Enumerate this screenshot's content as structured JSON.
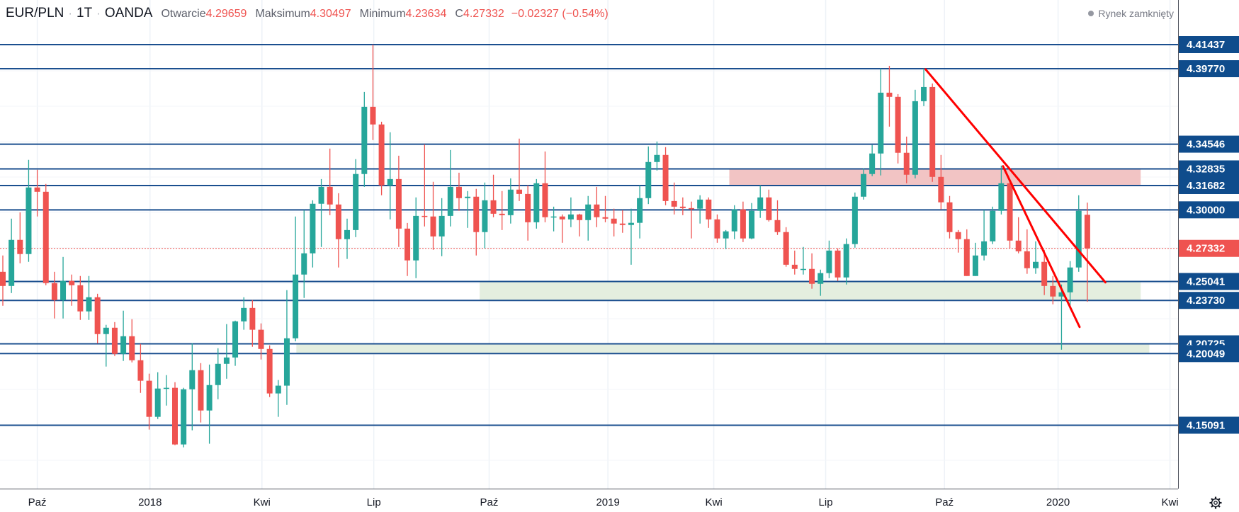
{
  "header": {
    "symbol": "EUR/PLN",
    "interval": "1T",
    "exchange": "OANDA",
    "open_label": "Otwarcie",
    "open_value": "4.29659",
    "high_label": "Maksimum",
    "high_value": "4.30497",
    "low_label": "Minimum",
    "low_value": "4.23634",
    "close_label": "C",
    "close_value": "4.27332",
    "change": "−0.02327 (−0.54%)",
    "market_status": "Rynek zamknięty"
  },
  "colors": {
    "up": "#26a69a",
    "down": "#ef5350",
    "level": "#1b4f8f",
    "label_bg": "#0f4c8c",
    "resistance_zone": "#f2c4c4",
    "support_zone": "#e4eedf",
    "trendline": "#ff0000"
  },
  "chart_data": {
    "type": "candlestick",
    "title": "EUR/PLN · 1T · OANDA",
    "y_range": [
      4.1215,
      4.4453
    ],
    "x_ticks": [
      {
        "label": "Paź",
        "index": 4.0
      },
      {
        "label": "2018",
        "index": 17.1
      },
      {
        "label": "Kwi",
        "index": 30.1
      },
      {
        "label": "Lip",
        "index": 43.1
      },
      {
        "label": "Paź",
        "index": 56.5
      },
      {
        "label": "2019",
        "index": 70.3
      },
      {
        "label": "Kwi",
        "index": 82.6
      },
      {
        "label": "Lip",
        "index": 95.6
      },
      {
        "label": "Paź",
        "index": 109.4
      },
      {
        "label": "2020",
        "index": 122.6
      },
      {
        "label": "Kwi",
        "index": 135.6
      }
    ],
    "levels": [
      "4.41437",
      "4.39770",
      "4.34546",
      "4.32835",
      "4.31682",
      "4.30000",
      "4.25041",
      "4.23730",
      "4.20725",
      "4.20049",
      "4.15091"
    ],
    "last_price": "4.27332",
    "zones": [
      {
        "type": "resistance",
        "from_index": 84.4,
        "to_index": 132.2,
        "top": 4.32835,
        "bottom": 4.31682
      },
      {
        "type": "support",
        "from_index": 55.4,
        "to_index": 132.2,
        "top": 4.25041,
        "bottom": 4.2373
      },
      {
        "type": "support",
        "from_index": 34.1,
        "to_index": 133.2,
        "top": 4.20725,
        "bottom": 4.20049
      }
    ],
    "trendlines": [
      {
        "from": [
          107.2,
          4.3973
        ],
        "to": [
          128.1,
          4.2498
        ]
      },
      {
        "from": [
          116.2,
          4.3302
        ],
        "to": [
          125.1,
          4.2189
        ]
      }
    ],
    "ohlc": [
      [
        4.2571,
        4.2684,
        4.2336,
        4.2473
      ],
      [
        4.2473,
        4.2939,
        4.2424,
        4.2792
      ],
      [
        4.2792,
        4.2983,
        4.263,
        4.2694
      ],
      [
        4.2694,
        4.3346,
        4.264,
        4.3155
      ],
      [
        4.3155,
        4.3277,
        4.2954,
        4.3125
      ],
      [
        4.3125,
        4.3179,
        4.2478,
        4.2493
      ],
      [
        4.2493,
        4.2571,
        4.2248,
        4.2375
      ],
      [
        4.2375,
        4.2674,
        4.2248,
        4.2508
      ],
      [
        4.2508,
        4.2552,
        4.2336,
        4.2478
      ],
      [
        4.2478,
        4.2542,
        4.2238,
        4.2297
      ],
      [
        4.2297,
        4.2542,
        4.2238,
        4.2395
      ],
      [
        4.2395,
        4.2419,
        4.2076,
        4.214
      ],
      [
        4.214,
        4.2204,
        4.1915,
        4.2184
      ],
      [
        4.2184,
        4.2223,
        4.1988,
        4.2003
      ],
      [
        4.2003,
        4.2302,
        4.1954,
        4.2125
      ],
      [
        4.2125,
        4.2243,
        4.1944,
        4.1959
      ],
      [
        4.1959,
        4.2072,
        4.1733,
        4.1817
      ],
      [
        4.1817,
        4.1866,
        4.1479,
        4.1567
      ],
      [
        4.1567,
        4.1876,
        4.1552,
        4.1763
      ],
      [
        4.1763,
        4.1856,
        4.1645,
        4.1768
      ],
      [
        4.1768,
        4.1807,
        4.1371,
        4.1376
      ],
      [
        4.1376,
        4.1768,
        4.1356,
        4.1758
      ],
      [
        4.1758,
        4.2076,
        4.1474,
        4.189
      ],
      [
        4.189,
        4.1939,
        4.1528,
        4.1611
      ],
      [
        4.1611,
        4.1929,
        4.1381,
        4.1787
      ],
      [
        4.1787,
        4.2042,
        4.1689,
        4.1934
      ],
      [
        4.1934,
        4.2209,
        4.1831,
        4.1978
      ],
      [
        4.1978,
        4.2233,
        4.192,
        4.2228
      ],
      [
        4.2228,
        4.2395,
        4.217,
        4.2321
      ],
      [
        4.2321,
        4.2375,
        4.2052,
        4.217
      ],
      [
        4.217,
        4.2214,
        4.1964,
        4.2037
      ],
      [
        4.2037,
        4.2062,
        4.1704,
        4.1729
      ],
      [
        4.1729,
        4.1822,
        4.1567,
        4.1783
      ],
      [
        4.1783,
        4.2444,
        4.165,
        4.2111
      ],
      [
        4.2111,
        4.2954,
        4.209,
        4.2552
      ],
      [
        4.2552,
        4.2998,
        4.239,
        4.2699
      ],
      [
        4.2699,
        4.3066,
        4.2601,
        4.3042
      ],
      [
        4.3042,
        4.3213,
        4.2743,
        4.3159
      ],
      [
        4.3159,
        4.3424,
        4.2963,
        4.3037
      ],
      [
        4.3037,
        4.3115,
        4.2601,
        4.2797
      ],
      [
        4.2797,
        4.2939,
        4.266,
        4.286
      ],
      [
        4.286,
        4.3351,
        4.2811,
        4.3248
      ],
      [
        4.3248,
        4.3816,
        4.3159,
        4.3713
      ],
      [
        4.3713,
        4.4144,
        4.3483,
        4.3591
      ],
      [
        4.3591,
        4.361,
        4.3101,
        4.3169
      ],
      [
        4.3169,
        4.3537,
        4.2934,
        4.3213
      ],
      [
        4.3213,
        4.3375,
        4.2743,
        4.287
      ],
      [
        4.287,
        4.2909,
        4.2542,
        4.265
      ],
      [
        4.265,
        4.3086,
        4.2527,
        4.2958
      ],
      [
        4.2958,
        4.3453,
        4.2885,
        4.2954
      ],
      [
        4.2954,
        4.3194,
        4.2723,
        4.2816
      ],
      [
        4.2816,
        4.3081,
        4.2679,
        4.2958
      ],
      [
        4.2958,
        4.3414,
        4.2885,
        4.3159
      ],
      [
        4.3159,
        4.3257,
        4.2993,
        4.3081
      ],
      [
        4.3081,
        4.313,
        4.2875,
        4.3091
      ],
      [
        4.3091,
        4.3145,
        4.2684,
        4.2846
      ],
      [
        4.2846,
        4.3189,
        4.2733,
        4.3066
      ],
      [
        4.3066,
        4.3243,
        4.2949,
        4.2973
      ],
      [
        4.2973,
        4.313,
        4.286,
        4.2963
      ],
      [
        4.2963,
        4.3218,
        4.2905,
        4.314
      ],
      [
        4.314,
        4.3493,
        4.3061,
        4.311
      ],
      [
        4.311,
        4.3169,
        4.2787,
        4.2914
      ],
      [
        4.2914,
        4.3213,
        4.287,
        4.3184
      ],
      [
        4.3184,
        4.3404,
        4.2914,
        4.2949
      ],
      [
        4.2949,
        4.3022,
        4.2851,
        4.2954
      ],
      [
        4.2954,
        4.2968,
        4.2772,
        4.2934
      ],
      [
        4.2934,
        4.3086,
        4.288,
        4.2968
      ],
      [
        4.2968,
        4.2973,
        4.2816,
        4.2929
      ],
      [
        4.2929,
        4.3096,
        4.2787,
        4.3037
      ],
      [
        4.3037,
        4.3159,
        4.288,
        4.2949
      ],
      [
        4.2949,
        4.3096,
        4.2914,
        4.2939
      ],
      [
        4.2939,
        4.3008,
        4.2816,
        4.2905
      ],
      [
        4.2905,
        4.2998,
        4.2841,
        4.2895
      ],
      [
        4.2895,
        4.3008,
        4.262,
        4.291
      ],
      [
        4.291,
        4.3169,
        4.2802,
        4.3081
      ],
      [
        4.3081,
        4.3439,
        4.304,
        4.3331
      ],
      [
        4.3331,
        4.3473,
        4.3272,
        4.338
      ],
      [
        4.338,
        4.3434,
        4.3032,
        4.3061
      ],
      [
        4.3061,
        4.3189,
        4.2968,
        4.3022
      ],
      [
        4.3022,
        4.3086,
        4.2963,
        4.3012
      ],
      [
        4.3012,
        4.3057,
        4.2802,
        4.3008
      ],
      [
        4.3008,
        4.3101,
        4.2905,
        4.3071
      ],
      [
        4.3071,
        4.3086,
        4.2875,
        4.2934
      ],
      [
        4.2934,
        4.2968,
        4.2772,
        4.2802
      ],
      [
        4.2802,
        4.286,
        4.2728,
        4.2851
      ],
      [
        4.2851,
        4.3032,
        4.2797,
        4.3003
      ],
      [
        4.3003,
        4.3057,
        4.2777,
        4.2802
      ],
      [
        4.2802,
        4.3047,
        4.2797,
        4.2993
      ],
      [
        4.2993,
        4.3169,
        4.2944,
        4.3086
      ],
      [
        4.3086,
        4.314,
        4.2919,
        4.2929
      ],
      [
        4.2929,
        4.3066,
        4.2826,
        4.2846
      ],
      [
        4.2846,
        4.288,
        4.2606,
        4.262
      ],
      [
        4.262,
        4.2718,
        4.2552,
        4.2591
      ],
      [
        4.2591,
        4.2743,
        4.2552,
        4.2591
      ],
      [
        4.2591,
        4.2699,
        4.2454,
        4.2488
      ],
      [
        4.2488,
        4.2586,
        4.2405,
        4.2562
      ],
      [
        4.2562,
        4.2787,
        4.2527,
        4.2718
      ],
      [
        4.2718,
        4.2733,
        4.2508,
        4.2532
      ],
      [
        4.2532,
        4.2802,
        4.2483,
        4.2763
      ],
      [
        4.2763,
        4.312,
        4.2738,
        4.3091
      ],
      [
        4.3091,
        4.3287,
        4.3071,
        4.3248
      ],
      [
        4.3248,
        4.3449,
        4.3233,
        4.339
      ],
      [
        4.339,
        4.3978,
        4.3238,
        4.3811
      ],
      [
        4.3811,
        4.3997,
        4.3576,
        4.3782
      ],
      [
        4.3782,
        4.3801,
        4.3321,
        4.3395
      ],
      [
        4.3395,
        4.3507,
        4.3184,
        4.3243
      ],
      [
        4.3243,
        4.3831,
        4.3218,
        4.3752
      ],
      [
        4.3752,
        4.3978,
        4.3718,
        4.385
      ],
      [
        4.385,
        4.3875,
        4.3194,
        4.3228
      ],
      [
        4.3228,
        4.338,
        4.3003,
        4.3052
      ],
      [
        4.3052,
        4.3096,
        4.2802,
        4.2846
      ],
      [
        4.2846,
        4.286,
        4.2704,
        4.2797
      ],
      [
        4.2797,
        4.2865,
        4.2542,
        4.2542
      ],
      [
        4.2542,
        4.2772,
        4.2542,
        4.2684
      ],
      [
        4.2684,
        4.2998,
        4.265,
        4.2782
      ],
      [
        4.2782,
        4.3022,
        4.2763,
        4.2993
      ],
      [
        4.2993,
        4.3306,
        4.2968,
        4.3184
      ],
      [
        4.3184,
        4.319,
        4.2733,
        4.2787
      ],
      [
        4.2787,
        4.2949,
        4.2699,
        4.2713
      ],
      [
        4.2713,
        4.2865,
        4.2557,
        4.2596
      ],
      [
        4.2596,
        4.2782,
        4.2557,
        4.264
      ],
      [
        4.264,
        4.2723,
        4.241,
        4.2473
      ],
      [
        4.2473,
        4.2542,
        4.2346,
        4.24
      ],
      [
        4.24,
        4.2483,
        4.2032,
        4.2429
      ],
      [
        4.2429,
        4.2645,
        4.2312,
        4.2601
      ],
      [
        4.2601,
        4.3101,
        4.2571,
        4.2993
      ],
      [
        4.29659,
        4.30497,
        4.23634,
        4.27332
      ]
    ]
  }
}
